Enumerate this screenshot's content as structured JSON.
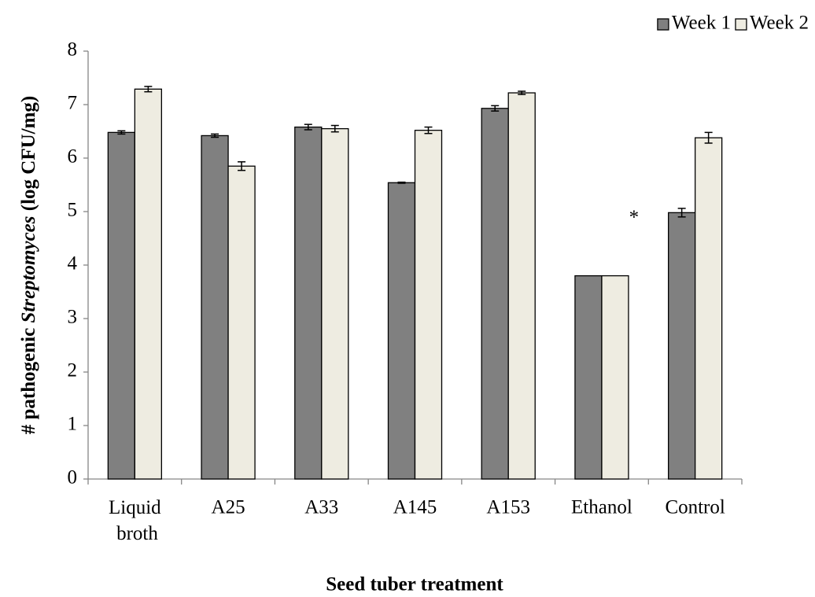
{
  "chart_data": {
    "type": "bar",
    "x_label": "Seed tuber treatment",
    "y_label": [
      "# pathogenic ",
      "Streptomyces",
      " (log CFU/mg)"
    ],
    "categories": [
      "Liquid broth",
      "A25",
      "A33",
      "A145",
      "A153",
      "Ethanol",
      "Control"
    ],
    "series": [
      {
        "name": "Week 1",
        "color": "#808080",
        "values": [
          6.48,
          6.42,
          6.58,
          5.54,
          6.93,
          3.8,
          4.98
        ],
        "errors": [
          0.03,
          0.03,
          0.05,
          0.01,
          0.05,
          null,
          0.08
        ]
      },
      {
        "name": "Week 2",
        "color": "#eeece1",
        "values": [
          7.29,
          5.85,
          6.55,
          6.52,
          7.22,
          3.8,
          6.38
        ],
        "errors": [
          0.05,
          0.08,
          0.06,
          0.06,
          0.03,
          null,
          0.1
        ]
      }
    ],
    "annotations": [
      {
        "text": "*",
        "category": 5,
        "y": 4.95
      }
    ],
    "ylim": [
      0,
      8
    ],
    "yticks": [
      0,
      1,
      2,
      3,
      4,
      5,
      6,
      7,
      8
    ],
    "legend": "top-right"
  }
}
